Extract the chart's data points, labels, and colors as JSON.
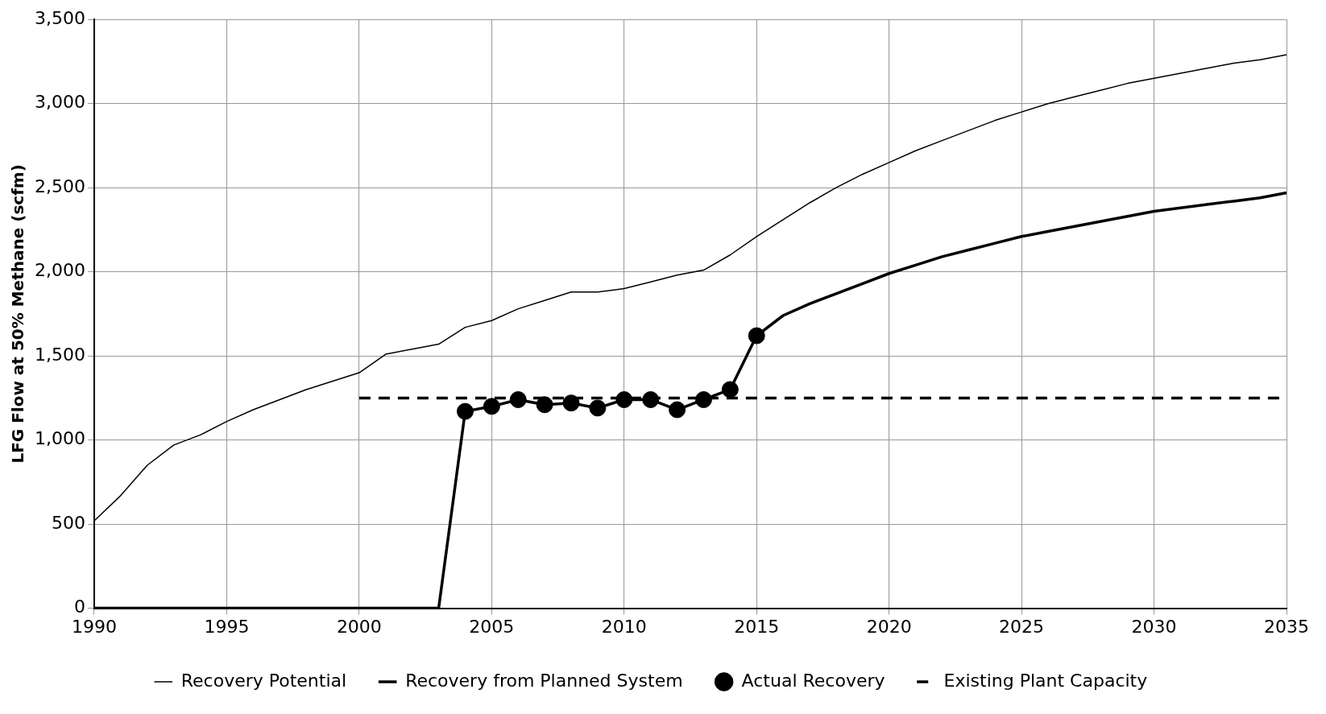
{
  "chart_data": {
    "type": "line",
    "ylabel": "LFG Flow at 50% Methane (scfm)",
    "x": [
      1990,
      1991,
      1992,
      1993,
      1994,
      1995,
      1996,
      1997,
      1998,
      1999,
      2000,
      2001,
      2002,
      2003,
      2004,
      2005,
      2006,
      2007,
      2008,
      2009,
      2010,
      2011,
      2012,
      2013,
      2014,
      2015,
      2016,
      2017,
      2018,
      2019,
      2020,
      2021,
      2022,
      2023,
      2024,
      2025,
      2026,
      2027,
      2028,
      2029,
      2030,
      2031,
      2032,
      2033,
      2034,
      2035
    ],
    "series": [
      {
        "name": "Recovery Potential",
        "color": "#000000",
        "values": [
          520,
          670,
          850,
          970,
          1030,
          1110,
          1180,
          1240,
          1300,
          1350,
          1400,
          1510,
          1540,
          1570,
          1670,
          1710,
          1780,
          1830,
          1880,
          1880,
          1900,
          1940,
          1980,
          2010,
          2100,
          2210,
          2310,
          2410,
          2500,
          2580,
          2650,
          2720,
          2780,
          2840,
          2900,
          2950,
          3000,
          3040,
          3080,
          3120,
          3150,
          3180,
          3210,
          3240,
          3260,
          3290
        ]
      },
      {
        "name": "Recovery from Planned System",
        "color": "#000000",
        "values": [
          0,
          0,
          0,
          0,
          0,
          0,
          0,
          0,
          0,
          0,
          0,
          0,
          0,
          0,
          1170,
          1200,
          1240,
          1210,
          1220,
          1190,
          1240,
          1240,
          1180,
          1240,
          1300,
          1620,
          1740,
          1810,
          1870,
          1930,
          1990,
          2040,
          2090,
          2130,
          2170,
          2210,
          2240,
          2270,
          2300,
          2330,
          2360,
          2380,
          2400,
          2420,
          2440,
          2470
        ]
      },
      {
        "name": "Actual Recovery",
        "type": "scatter",
        "marker": "circle",
        "color": "#000000",
        "x": [
          2004,
          2005,
          2006,
          2007,
          2008,
          2009,
          2010,
          2011,
          2012,
          2013,
          2014,
          2015
        ],
        "values": [
          1170,
          1200,
          1240,
          1210,
          1220,
          1190,
          1240,
          1240,
          1180,
          1240,
          1300,
          1620
        ]
      },
      {
        "name": "Existing Plant Capacity",
        "color": "#000000",
        "line_style": "dashed",
        "x": [
          2000,
          2035
        ],
        "values": [
          1250,
          1250
        ]
      }
    ],
    "xlim": [
      1990,
      2035
    ],
    "xticks": [
      1990,
      1995,
      2000,
      2005,
      2010,
      2015,
      2020,
      2025,
      2030,
      2035
    ],
    "ylim": [
      0,
      3500
    ],
    "yticks": [
      {
        "value": 0,
        "label": "0"
      },
      {
        "value": 500,
        "label": "500"
      },
      {
        "value": 1000,
        "label": "1,000"
      },
      {
        "value": 1500,
        "label": "1,500"
      },
      {
        "value": 2000,
        "label": "2,000"
      },
      {
        "value": 2500,
        "label": "2,500"
      },
      {
        "value": 3000,
        "label": "3,000"
      },
      {
        "value": 3500,
        "label": "3,500"
      }
    ],
    "grid": true,
    "legend": "bottom",
    "marker": "none"
  }
}
